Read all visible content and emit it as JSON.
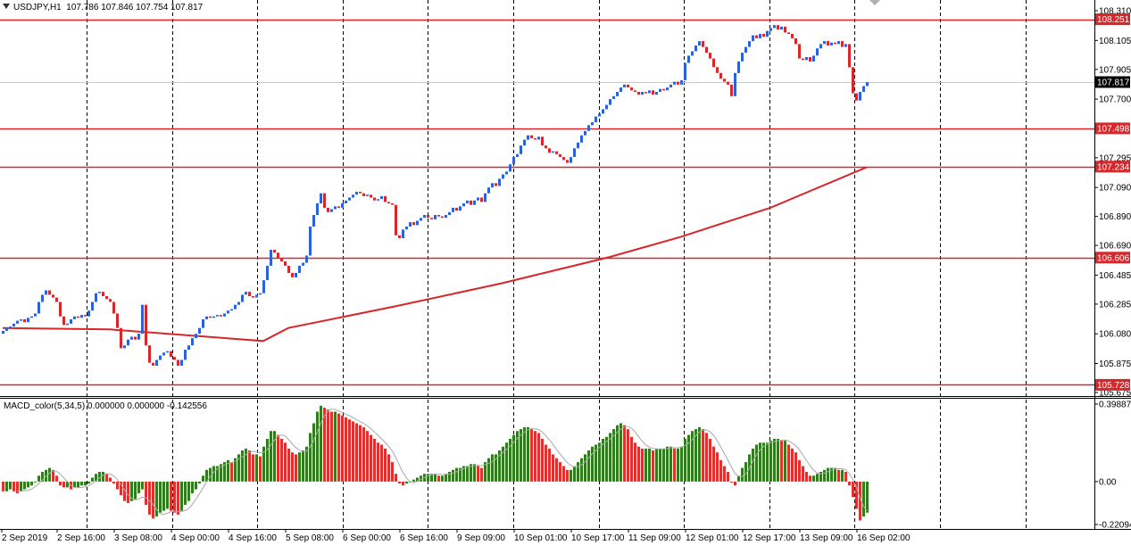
{
  "header": {
    "symbol_line": "USDJPY,H1  107.786 107.846 107.754 107.817",
    "menu_icon": "triangle-down-icon"
  },
  "colors": {
    "bull_candle": "#2b62d9",
    "bear_candle": "#d8262a",
    "level_line": "#d8262a",
    "moving_average": "#d8262a",
    "current_price_line": "#c8c8c8",
    "macd_up": "#2f7d1c",
    "macd_down": "#e03030",
    "macd_signal": "#a8a8a8",
    "grid": "#000000"
  },
  "chart_data": {
    "type": "candlestick",
    "symbol": "USDJPY",
    "timeframe": "H1",
    "ylim": [
      105.675,
      108.31
    ],
    "price_axis_ticks": [
      "108.310",
      "108.105",
      "107.905",
      "107.700",
      "107.295",
      "107.090",
      "106.890",
      "106.690",
      "106.485",
      "106.285",
      "106.080",
      "105.875",
      "105.675"
    ],
    "x_tick_labels": [
      "2 Sep 2019",
      "2 Sep 16:00",
      "3 Sep 08:00",
      "4 Sep 00:00",
      "4 Sep 16:00",
      "5 Sep 08:00",
      "6 Sep 00:00",
      "6 Sep 16:00",
      "9 Sep 09:00",
      "10 Sep 01:00",
      "10 Sep 17:00",
      "11 Sep 09:00",
      "12 Sep 01:00",
      "12 Sep 17:00",
      "13 Sep 09:00",
      "16 Sep 02:00"
    ],
    "levels": [
      {
        "value": "108.251"
      },
      {
        "value": "107.498"
      },
      {
        "value": "107.234"
      },
      {
        "value": "106.606"
      },
      {
        "value": "105.728"
      }
    ],
    "current_price": "107.817",
    "first_open": 106.08,
    "closes": [
      106.1,
      106.12,
      106.13,
      106.15,
      106.17,
      106.18,
      106.16,
      106.19,
      106.2,
      106.22,
      106.3,
      106.35,
      106.38,
      106.35,
      106.33,
      106.3,
      106.2,
      106.14,
      106.15,
      106.18,
      106.2,
      106.19,
      106.21,
      106.2,
      106.24,
      106.3,
      106.36,
      106.37,
      106.34,
      106.32,
      106.3,
      106.22,
      106.12,
      105.98,
      106.0,
      106.04,
      106.06,
      106.04,
      106.08,
      106.28,
      106.0,
      105.88,
      105.86,
      105.9,
      105.93,
      105.95,
      105.96,
      105.92,
      105.9,
      105.86,
      105.9,
      105.97,
      106.0,
      106.05,
      106.08,
      106.12,
      106.18,
      106.2,
      106.19,
      106.2,
      106.21,
      106.2,
      106.22,
      106.24,
      106.25,
      106.28,
      106.3,
      106.35,
      106.37,
      106.34,
      106.33,
      106.35,
      106.36,
      106.45,
      106.55,
      106.66,
      106.64,
      106.6,
      106.58,
      106.55,
      106.5,
      106.47,
      106.5,
      106.55,
      106.57,
      106.62,
      106.82,
      106.9,
      106.98,
      107.05,
      106.95,
      106.92,
      106.94,
      106.96,
      106.95,
      106.98,
      107.0,
      107.02,
      107.04,
      107.06,
      107.05,
      107.03,
      107.04,
      107.02,
      107.0,
      107.01,
      107.03,
      106.99,
      106.98,
      106.97,
      106.76,
      106.74,
      106.8,
      106.82,
      106.85,
      106.83,
      106.86,
      106.88,
      106.9,
      106.88,
      106.87,
      106.9,
      106.89,
      106.88,
      106.9,
      106.92,
      106.95,
      106.93,
      106.96,
      106.98,
      107.0,
      106.97,
      107.0,
      107.02,
      106.99,
      107.05,
      107.09,
      107.12,
      107.1,
      107.15,
      107.18,
      107.2,
      107.25,
      107.3,
      107.32,
      107.38,
      107.42,
      107.45,
      107.43,
      107.42,
      107.44,
      107.38,
      107.36,
      107.33,
      107.34,
      107.32,
      107.3,
      107.28,
      107.26,
      107.3,
      107.36,
      107.4,
      107.45,
      107.48,
      107.52,
      107.54,
      107.58,
      107.6,
      107.63,
      107.66,
      107.7,
      107.72,
      107.75,
      107.78,
      107.8,
      107.78,
      107.76,
      107.75,
      107.73,
      107.75,
      107.74,
      107.76,
      107.73,
      107.75,
      107.77,
      107.76,
      107.78,
      107.8,
      107.82,
      107.8,
      107.83,
      107.95,
      108.0,
      108.03,
      108.07,
      108.1,
      108.06,
      108.02,
      107.98,
      107.92,
      107.88,
      107.84,
      107.82,
      107.8,
      107.72,
      107.88,
      107.96,
      108.02,
      108.06,
      108.1,
      108.14,
      108.12,
      108.15,
      108.13,
      108.17,
      108.19,
      108.21,
      108.18,
      108.2,
      108.16,
      108.15,
      108.12,
      108.08,
      107.98,
      107.97,
      107.99,
      107.96,
      108.0,
      108.05,
      108.08,
      108.1,
      108.07,
      108.09,
      108.08,
      108.1,
      108.06,
      108.08,
      107.92,
      107.74,
      107.69,
      107.75,
      107.79,
      107.817
    ],
    "moving_average": [
      [
        0,
        106.12
      ],
      [
        30,
        106.11
      ],
      [
        73,
        106.03
      ],
      [
        80,
        106.12
      ],
      [
        110,
        106.27
      ],
      [
        140,
        106.43
      ],
      [
        170,
        106.61
      ],
      [
        190,
        106.75
      ],
      [
        215,
        106.95
      ],
      [
        242,
        107.23
      ]
    ],
    "macd": {
      "label": "MACD_color(5,34,5) 0.000000 0.000000 -0.142556",
      "axis_ticks": [
        "0.398875",
        "0.00",
        "-0.22094"
      ],
      "ylim": [
        -0.22094,
        0.398875
      ],
      "signal_period": 5,
      "histogram": [
        -0.05,
        -0.05,
        -0.04,
        -0.05,
        -0.06,
        -0.05,
        -0.04,
        -0.03,
        -0.02,
        0.0,
        0.03,
        0.05,
        0.06,
        0.07,
        0.06,
        0.03,
        -0.02,
        -0.03,
        -0.03,
        -0.04,
        -0.03,
        -0.03,
        -0.02,
        -0.02,
        -0.01,
        0.02,
        0.04,
        0.05,
        0.05,
        0.04,
        0.02,
        -0.01,
        -0.04,
        -0.07,
        -0.1,
        -0.11,
        -0.1,
        -0.09,
        -0.06,
        -0.04,
        -0.12,
        -0.17,
        -0.19,
        -0.18,
        -0.16,
        -0.15,
        -0.14,
        -0.15,
        -0.16,
        -0.17,
        -0.15,
        -0.12,
        -0.1,
        -0.06,
        -0.04,
        -0.01,
        0.03,
        0.06,
        0.07,
        0.08,
        0.08,
        0.09,
        0.1,
        0.11,
        0.1,
        0.12,
        0.14,
        0.16,
        0.17,
        0.16,
        0.14,
        0.14,
        0.13,
        0.18,
        0.22,
        0.26,
        0.26,
        0.24,
        0.22,
        0.2,
        0.17,
        0.15,
        0.14,
        0.15,
        0.16,
        0.18,
        0.25,
        0.3,
        0.36,
        0.39,
        0.38,
        0.37,
        0.36,
        0.36,
        0.35,
        0.34,
        0.33,
        0.32,
        0.31,
        0.3,
        0.29,
        0.28,
        0.26,
        0.24,
        0.22,
        0.2,
        0.19,
        0.17,
        0.14,
        0.1,
        0.04,
        -0.01,
        -0.02,
        -0.01,
        0.0,
        0.01,
        0.02,
        0.03,
        0.04,
        0.04,
        0.04,
        0.04,
        0.03,
        0.03,
        0.04,
        0.05,
        0.06,
        0.07,
        0.07,
        0.08,
        0.08,
        0.09,
        0.09,
        0.08,
        0.07,
        0.1,
        0.12,
        0.14,
        0.14,
        0.16,
        0.18,
        0.2,
        0.22,
        0.24,
        0.26,
        0.27,
        0.28,
        0.28,
        0.27,
        0.26,
        0.25,
        0.22,
        0.19,
        0.17,
        0.14,
        0.12,
        0.1,
        0.08,
        0.06,
        0.06,
        0.08,
        0.1,
        0.12,
        0.14,
        0.16,
        0.18,
        0.19,
        0.2,
        0.22,
        0.23,
        0.25,
        0.27,
        0.29,
        0.3,
        0.29,
        0.27,
        0.23,
        0.2,
        0.18,
        0.17,
        0.17,
        0.17,
        0.16,
        0.17,
        0.17,
        0.17,
        0.18,
        0.18,
        0.17,
        0.17,
        0.18,
        0.22,
        0.24,
        0.26,
        0.27,
        0.28,
        0.27,
        0.25,
        0.22,
        0.18,
        0.15,
        0.11,
        0.08,
        0.05,
        0.0,
        -0.02,
        0.03,
        0.07,
        0.1,
        0.14,
        0.17,
        0.19,
        0.2,
        0.2,
        0.2,
        0.21,
        0.22,
        0.22,
        0.21,
        0.21,
        0.19,
        0.17,
        0.15,
        0.11,
        0.08,
        0.05,
        0.03,
        0.03,
        0.04,
        0.05,
        0.06,
        0.07,
        0.07,
        0.07,
        0.06,
        0.06,
        0.05,
        -0.02,
        -0.08,
        -0.14,
        -0.2,
        -0.18,
        -0.16
      ]
    }
  }
}
